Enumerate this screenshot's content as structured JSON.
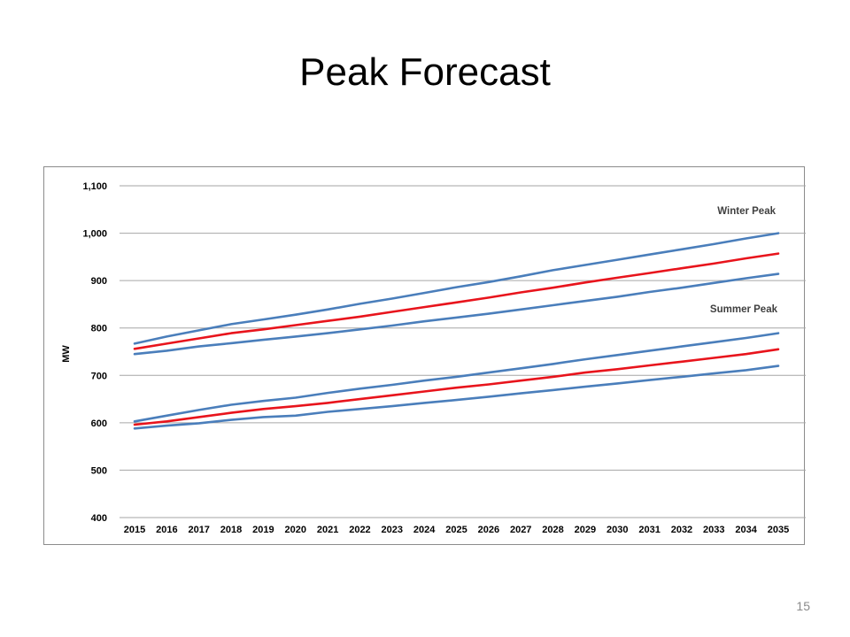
{
  "slide": {
    "title": "Peak Forecast",
    "page_number": "15"
  },
  "chart_data": {
    "type": "line",
    "title": "",
    "xlabel": "",
    "ylabel": "MW",
    "x": [
      2015,
      2016,
      2017,
      2018,
      2019,
      2020,
      2021,
      2022,
      2023,
      2024,
      2025,
      2026,
      2027,
      2028,
      2029,
      2030,
      2031,
      2032,
      2033,
      2034,
      2035
    ],
    "ylim": [
      400,
      1100
    ],
    "yticks": [
      400,
      500,
      600,
      700,
      800,
      900,
      1000,
      1100
    ],
    "ytick_labels": [
      "400",
      "500",
      "600",
      "700",
      "800",
      "900",
      "1,000",
      "1,100"
    ],
    "grid": true,
    "legend": "none",
    "annotations": [
      "Winter Peak",
      "Summer Peak"
    ],
    "series": [
      {
        "color": "#4a7ebb",
        "values": [
          767,
          782,
          795,
          808,
          818,
          828,
          839,
          851,
          862,
          874,
          886,
          897,
          909,
          922,
          933,
          944,
          955,
          966,
          977,
          989,
          1000
        ]
      },
      {
        "color": "#e8141c",
        "values": [
          756,
          767,
          778,
          789,
          797,
          806,
          815,
          824,
          834,
          844,
          854,
          864,
          875,
          885,
          896,
          906,
          916,
          926,
          936,
          947,
          957
        ]
      },
      {
        "color": "#4a7ebb",
        "values": [
          745,
          752,
          761,
          768,
          775,
          782,
          789,
          797,
          805,
          814,
          822,
          830,
          839,
          848,
          857,
          866,
          876,
          885,
          895,
          905,
          914
        ]
      },
      {
        "color": "#4a7ebb",
        "values": [
          603,
          615,
          627,
          638,
          646,
          653,
          663,
          672,
          680,
          689,
          697,
          706,
          715,
          724,
          734,
          743,
          752,
          761,
          770,
          779,
          789
        ]
      },
      {
        "color": "#e8141c",
        "values": [
          596,
          603,
          612,
          621,
          629,
          635,
          642,
          650,
          658,
          666,
          674,
          681,
          689,
          697,
          706,
          713,
          721,
          729,
          737,
          745,
          755
        ]
      },
      {
        "color": "#4a7ebb",
        "values": [
          588,
          594,
          599,
          606,
          612,
          615,
          623,
          629,
          635,
          642,
          648,
          655,
          662,
          669,
          676,
          683,
          690,
          697,
          704,
          711,
          720
        ]
      }
    ]
  }
}
